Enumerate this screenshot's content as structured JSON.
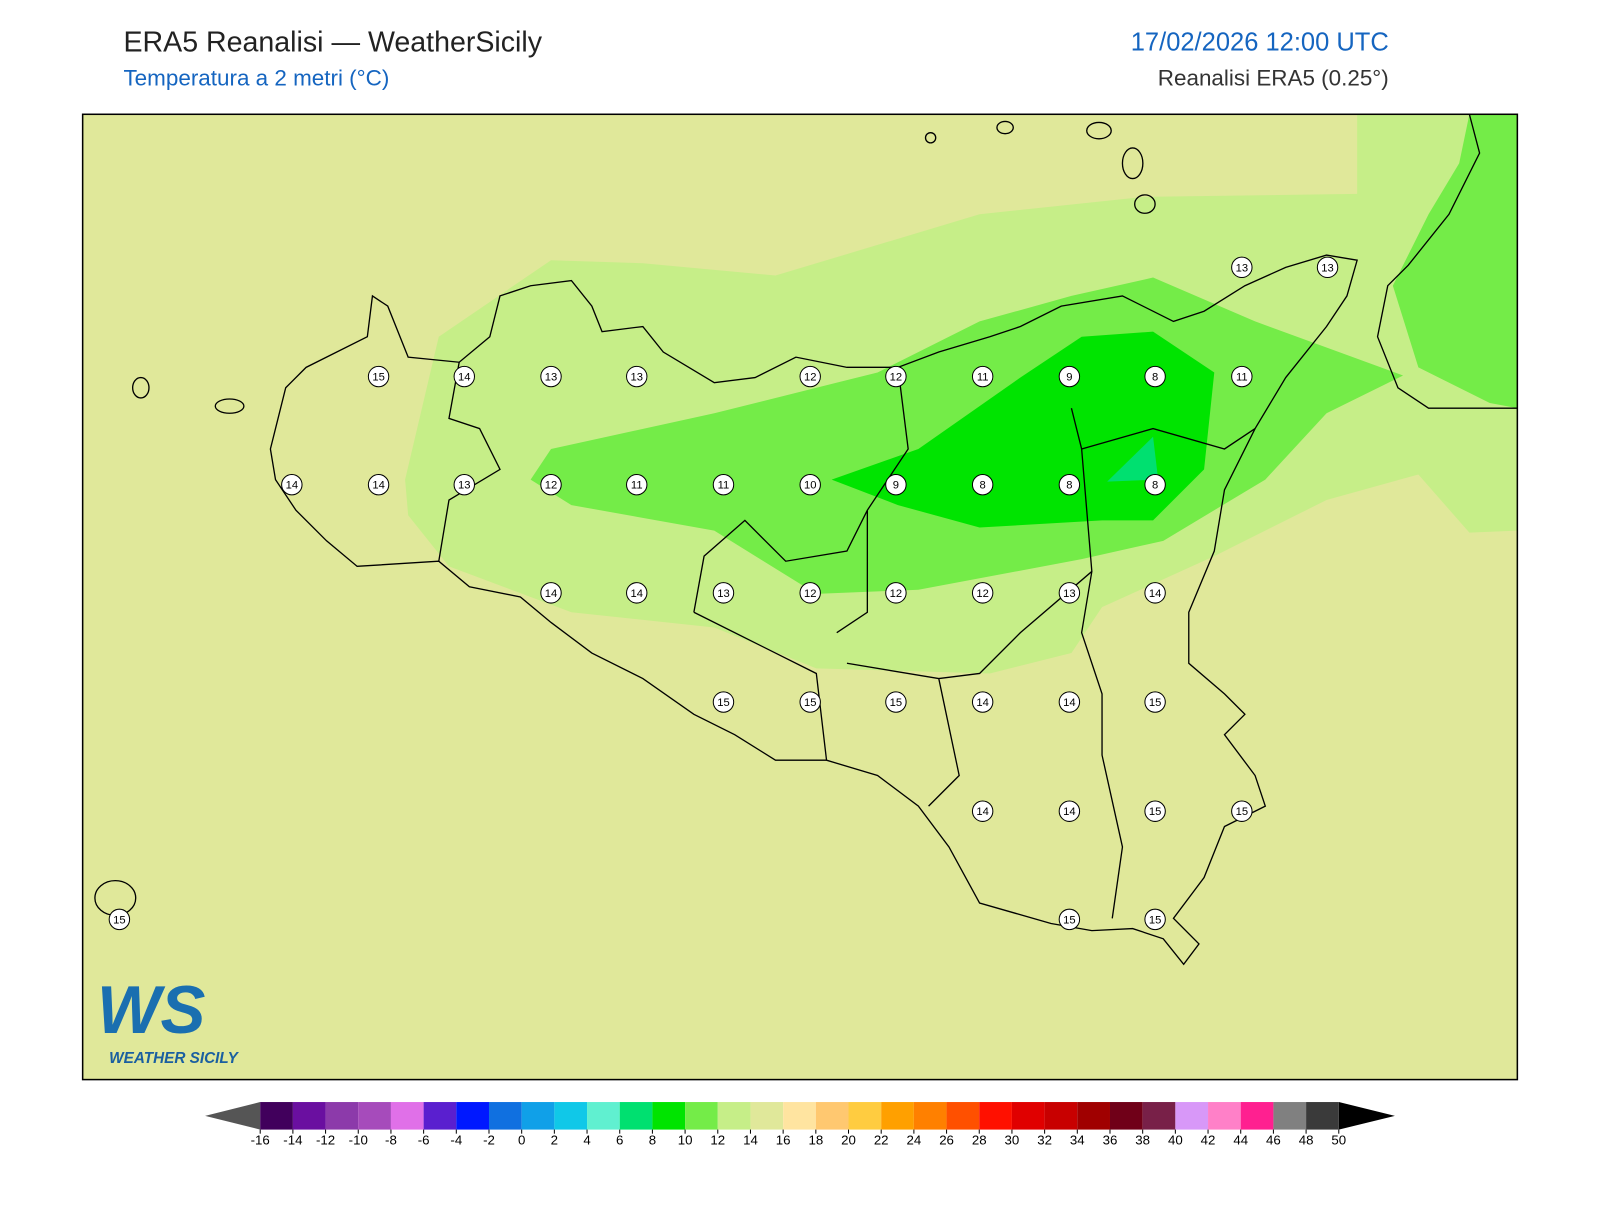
{
  "header": {
    "title": "ERA5 Reanalisi — WeatherSicily",
    "subtitle": "Temperatura a 2 metri (°C)",
    "datetime": "17/02/2026 12:00 UTC",
    "source": "Reanalisi ERA5 (0.25°)"
  },
  "map": {
    "stations": [
      13,
      13,
      15,
      14,
      13,
      13,
      12,
      12,
      11,
      9,
      8,
      11,
      14,
      14,
      13,
      12,
      11,
      11,
      10,
      9,
      8,
      8,
      8,
      14,
      14,
      13,
      12,
      12,
      12,
      13,
      14,
      15,
      15,
      15,
      14,
      14,
      15,
      14,
      14,
      15,
      15,
      15,
      15,
      15
    ]
  },
  "colorbar": {
    "ticks": [
      -16,
      -14,
      -12,
      -10,
      -8,
      -6,
      -4,
      -2,
      0,
      2,
      4,
      6,
      8,
      10,
      12,
      14,
      16,
      18,
      20,
      22,
      24,
      26,
      28,
      30,
      32,
      34,
      36,
      38,
      40,
      42,
      44,
      46,
      48,
      50
    ],
    "colors": [
      "#41005c",
      "#6a0fa0",
      "#8c3aaa",
      "#a64bbb",
      "#e070e8",
      "#5a1fcf",
      "#0018ff",
      "#1070e0",
      "#10a0e8",
      "#10c8e8",
      "#60f0d0",
      "#00e070",
      "#00e400",
      "#74ec48",
      "#c6ee88",
      "#e0e89a",
      "#ffe4a0",
      "#ffc870",
      "#ffcc40",
      "#ffa000",
      "#ff8000",
      "#ff5000",
      "#ff1000",
      "#e00000",
      "#c80000",
      "#a00000",
      "#700018",
      "#782048",
      "#d898f8",
      "#ff80c8",
      "#ff2090",
      "#808080",
      "#3a3a3a"
    ],
    "under_color": "#555555",
    "over_color": "#000000"
  },
  "logo": {
    "initials": "WS",
    "name": "WEATHER SICILY"
  }
}
